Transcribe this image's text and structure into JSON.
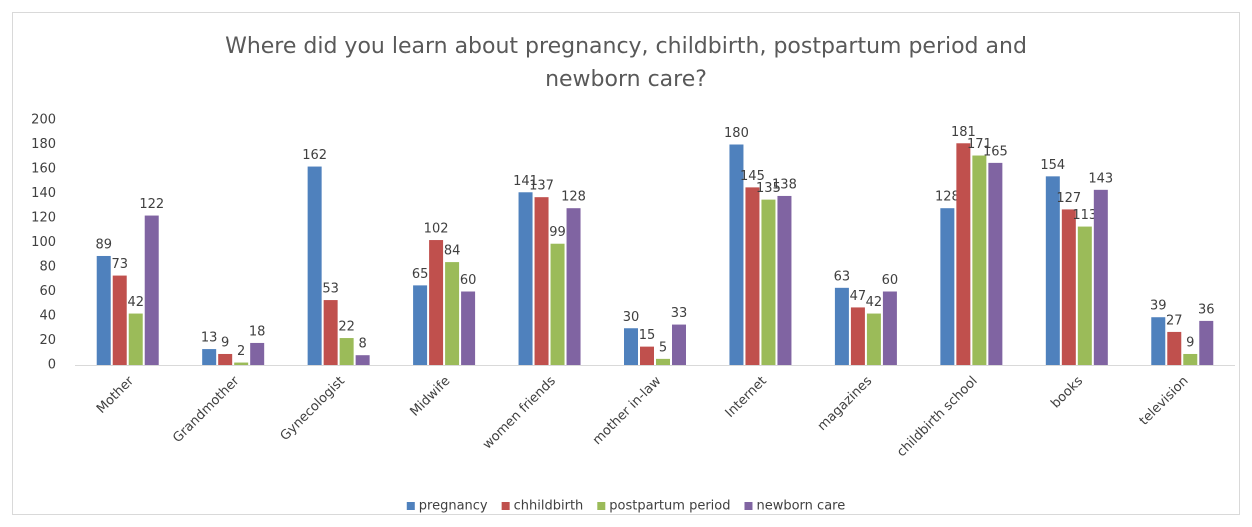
{
  "chart_data": {
    "type": "bar",
    "title": "Where did you learn about pregnancy, childbirth, postpartum period and newborn care?",
    "categories": [
      "Mother",
      "Grandmother",
      "Gynecologist",
      "Midwife",
      "women friends",
      "mother in-law",
      "Internet",
      "magazines",
      "childbirth school",
      "books",
      "television"
    ],
    "series": [
      {
        "name": "pregnancy",
        "color": "#4f81bd",
        "values": [
          89,
          13,
          162,
          65,
          141,
          30,
          180,
          63,
          128,
          154,
          39
        ]
      },
      {
        "name": "chhildbirth",
        "color": "#c0504d",
        "values": [
          73,
          9,
          53,
          102,
          137,
          15,
          145,
          47,
          181,
          127,
          27
        ]
      },
      {
        "name": "postpartum period",
        "color": "#9bbb59",
        "values": [
          42,
          2,
          22,
          84,
          99,
          5,
          135,
          42,
          171,
          113,
          9
        ]
      },
      {
        "name": "newborn care",
        "color": "#8064a2",
        "values": [
          122,
          18,
          8,
          60,
          128,
          33,
          138,
          60,
          165,
          143,
          36
        ]
      }
    ],
    "ylim": [
      0,
      200
    ],
    "yticks": [
      0,
      20,
      40,
      60,
      80,
      100,
      120,
      140,
      160,
      180,
      200
    ],
    "grid": false,
    "legend": "bottom"
  }
}
